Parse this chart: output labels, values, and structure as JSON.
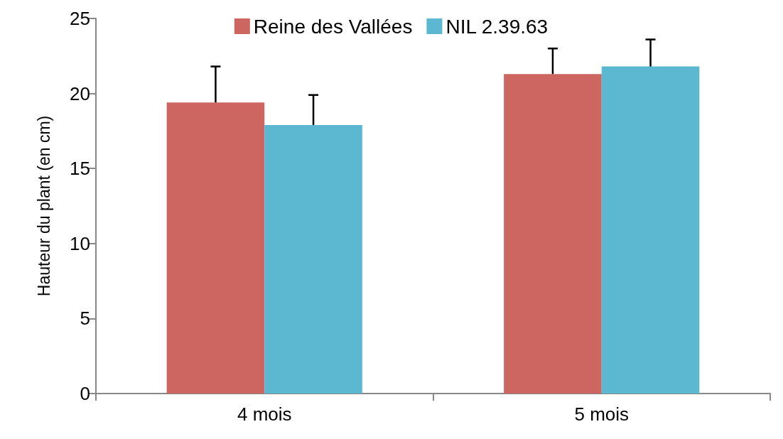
{
  "chart_data": {
    "type": "bar",
    "ylabel": "Hauteur du plant (en cm)",
    "categories": [
      "4 mois",
      "5 mois"
    ],
    "series": [
      {
        "name": "Reine des Vallées",
        "color": "#cd6660",
        "values": [
          19.4,
          21.3
        ],
        "errors": [
          [
            19.4,
            21.8
          ],
          [
            21.3,
            23.0
          ]
        ]
      },
      {
        "name": "NIL 2.39.63",
        "color": "#5bb8d0",
        "values": [
          17.9,
          21.8
        ],
        "errors": [
          [
            17.9,
            19.9
          ],
          [
            21.8,
            23.6
          ]
        ]
      }
    ],
    "ylim": [
      0,
      25
    ],
    "yticks": [
      0,
      5,
      10,
      15,
      20,
      25
    ],
    "grid": false,
    "legend": "top"
  }
}
